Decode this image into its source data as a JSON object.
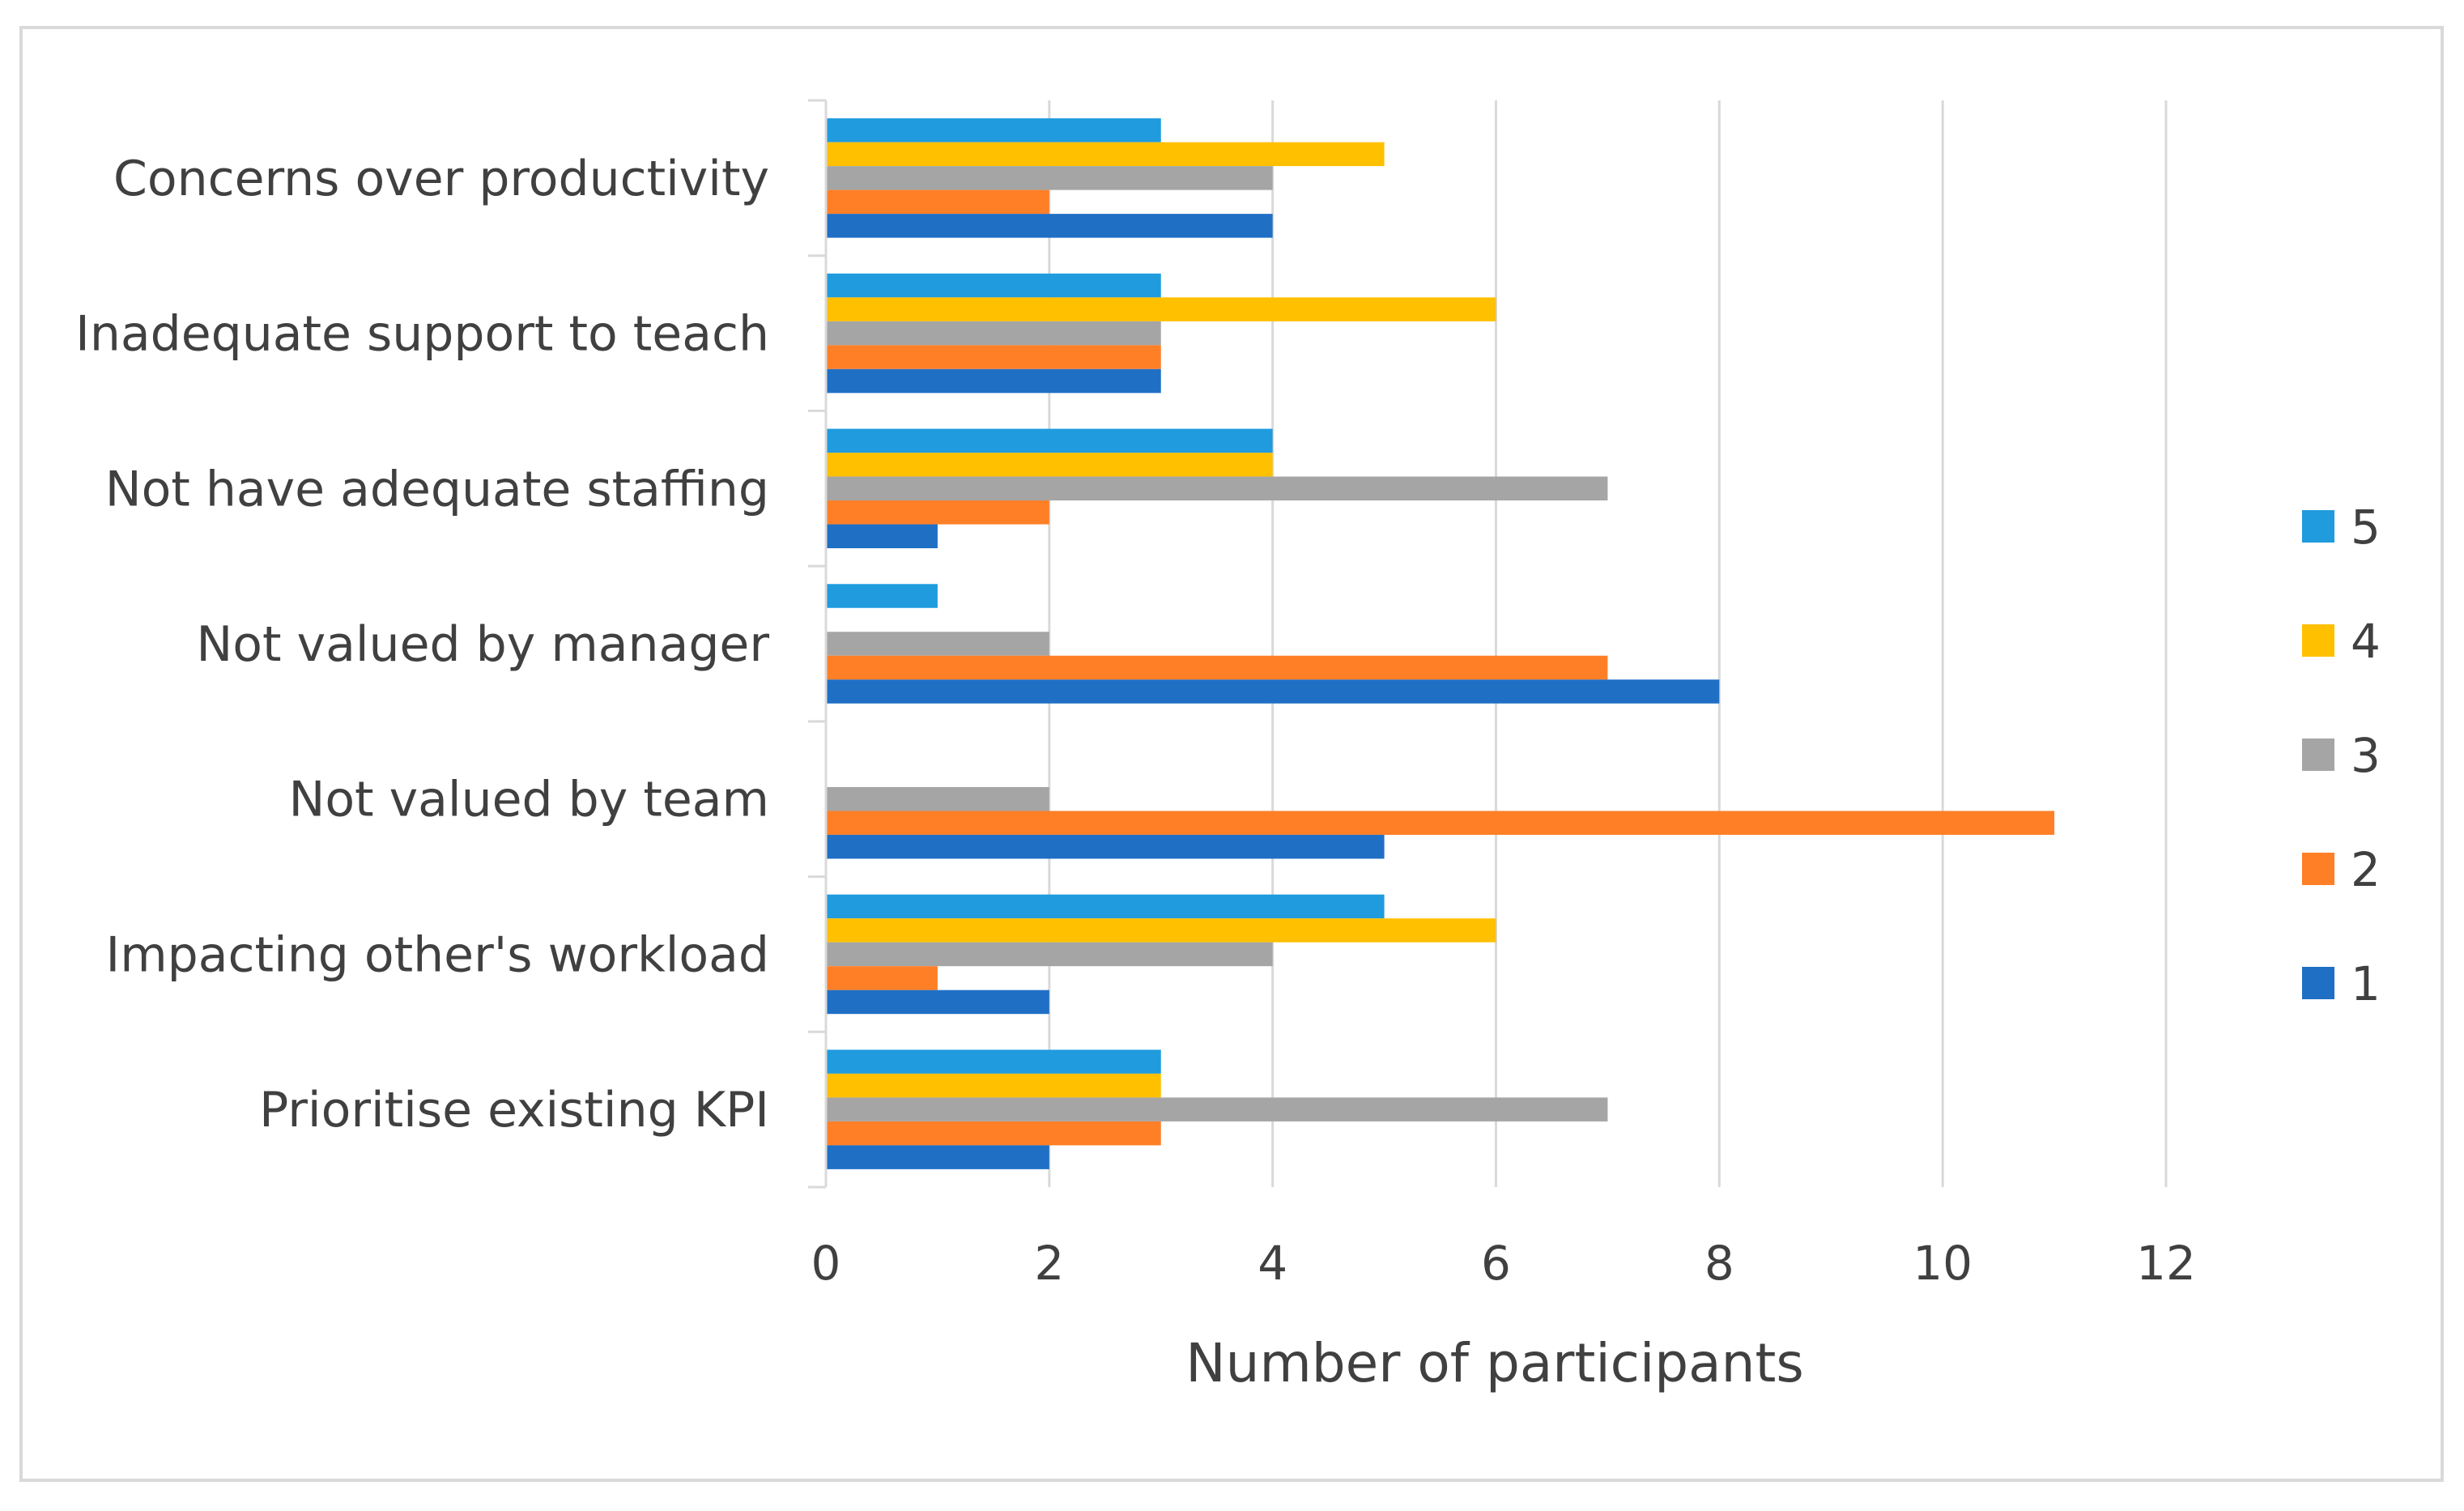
{
  "chart_data": {
    "type": "bar",
    "orientation": "horizontal",
    "title": "",
    "xlabel": "Number of participants",
    "ylabel": "",
    "xlim": [
      0,
      12
    ],
    "xticks": [
      "0",
      "2",
      "4",
      "6",
      "8",
      "10",
      "12"
    ],
    "grid": "vertical",
    "legend_position": "right",
    "categories": [
      "Concerns over productivity",
      "Inadequate support to teach",
      "Not have adequate staffing",
      "Not valued by manager",
      "Not valued by team",
      "Impacting other's workload",
      "Prioritise existing KPI"
    ],
    "series": [
      {
        "name": "5",
        "color": "#1f9bde",
        "values": [
          3,
          3,
          4,
          1,
          0,
          5,
          3
        ]
      },
      {
        "name": "4",
        "color": "#ffc000",
        "values": [
          5,
          6,
          4,
          0,
          0,
          6,
          3
        ]
      },
      {
        "name": "3",
        "color": "#a5a5a5",
        "values": [
          4,
          3,
          7,
          2,
          2,
          4,
          7
        ]
      },
      {
        "name": "2",
        "color": "#ff7f27",
        "values": [
          2,
          3,
          2,
          7,
          11,
          1,
          3
        ]
      },
      {
        "name": "1",
        "color": "#1f6fc5",
        "values": [
          4,
          3,
          1,
          8,
          5,
          2,
          2
        ]
      }
    ]
  }
}
